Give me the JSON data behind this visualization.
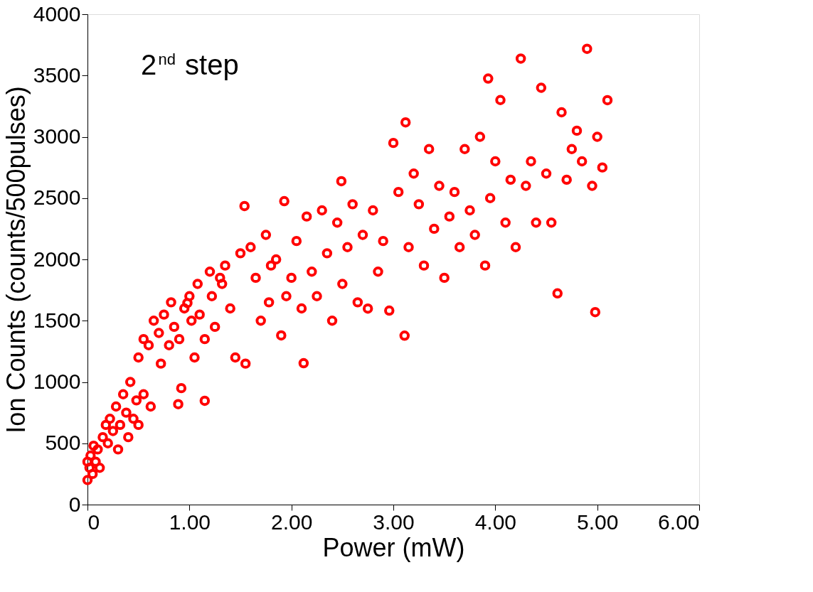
{
  "chart_data": {
    "type": "scatter",
    "xlabel": "Power (mW)",
    "ylabel": "Ion Counts (counts/500pulses)",
    "annotations": [
      "2$^{nd}$ step"
    ],
    "xlim": [
      0,
      6
    ],
    "ylim": [
      0,
      4000
    ],
    "xticks": [
      0,
      {
        "value": 1,
        "label": "1.00"
      },
      {
        "value": 2,
        "label": "2.00"
      },
      {
        "value": 3,
        "label": "3.00"
      },
      {
        "value": 4,
        "label": "4.00"
      },
      {
        "value": 5,
        "label": "5.00"
      },
      {
        "value": 6,
        "label": "6.00"
      }
    ],
    "yticks": [
      0,
      500,
      1000,
      1500,
      2000,
      2500,
      3000,
      3500,
      4000
    ],
    "grid": false,
    "marker": "circle",
    "series": [
      {
        "color": "#ff0000",
        "x": [
          0.0,
          0.0,
          0.02,
          0.03,
          0.05,
          0.06,
          0.08,
          0.1,
          0.12,
          0.15,
          0.18,
          0.2,
          0.22,
          0.25,
          0.28,
          0.3,
          0.32,
          0.35,
          0.38,
          0.4,
          0.42,
          0.45,
          0.48,
          0.5,
          0.5,
          0.55,
          0.55,
          0.6,
          0.62,
          0.65,
          0.7,
          0.72,
          0.75,
          0.8,
          0.82,
          0.85,
          0.89,
          0.9,
          0.92,
          0.95,
          0.98,
          1.0,
          1.02,
          1.05,
          1.08,
          1.1,
          1.15,
          1.15,
          1.2,
          1.22,
          1.25,
          1.3,
          1.32,
          1.35,
          1.4,
          1.45,
          1.5,
          1.54,
          1.55,
          1.6,
          1.65,
          1.7,
          1.75,
          1.78,
          1.8,
          1.85,
          1.9,
          1.93,
          1.95,
          2.0,
          2.05,
          2.1,
          2.12,
          2.15,
          2.2,
          2.25,
          2.3,
          2.35,
          2.4,
          2.45,
          2.49,
          2.5,
          2.55,
          2.6,
          2.65,
          2.7,
          2.75,
          2.8,
          2.85,
          2.9,
          2.96,
          3.0,
          3.05,
          3.11,
          3.12,
          3.15,
          3.2,
          3.25,
          3.3,
          3.35,
          3.4,
          3.45,
          3.5,
          3.55,
          3.6,
          3.65,
          3.7,
          3.75,
          3.8,
          3.85,
          3.9,
          3.93,
          3.95,
          4.0,
          4.05,
          4.1,
          4.15,
          4.2,
          4.25,
          4.3,
          4.35,
          4.4,
          4.45,
          4.5,
          4.55,
          4.61,
          4.65,
          4.7,
          4.75,
          4.8,
          4.85,
          4.9,
          4.95,
          4.98,
          5.0,
          5.05,
          5.1
        ],
        "values": [
          200,
          350,
          300,
          400,
          250,
          480,
          350,
          450,
          300,
          550,
          650,
          500,
          700,
          600,
          800,
          450,
          650,
          900,
          750,
          550,
          1000,
          700,
          850,
          1200,
          650,
          1350,
          900,
          1300,
          800,
          1500,
          1400,
          1150,
          1550,
          1300,
          1650,
          1450,
          819,
          1350,
          950,
          1600,
          1644,
          1700,
          1500,
          1200,
          1800,
          1550,
          1350,
          847,
          1900,
          1700,
          1450,
          1850,
          1800,
          1950,
          1600,
          1200,
          2050,
          2435,
          1150,
          2100,
          1850,
          1500,
          2200,
          1650,
          1950,
          2000,
          1380,
          2475,
          1700,
          1850,
          2150,
          1600,
          1153,
          2350,
          1900,
          1700,
          2400,
          2050,
          1500,
          2300,
          2638,
          1800,
          2100,
          2450,
          1650,
          2200,
          1599,
          2400,
          1900,
          2150,
          1582,
          2950,
          2550,
          1378,
          3118,
          2100,
          2700,
          2450,
          1950,
          2900,
          2250,
          2600,
          1850,
          2350,
          2550,
          2100,
          2900,
          2400,
          2200,
          3000,
          1950,
          3475,
          2500,
          2800,
          3300,
          2300,
          2650,
          2100,
          3638,
          2600,
          2800,
          2300,
          3400,
          2700,
          2300,
          1723,
          3200,
          2650,
          2900,
          3050,
          2800,
          3718,
          2600,
          1570,
          3000,
          2750,
          3299
        ]
      }
    ]
  }
}
